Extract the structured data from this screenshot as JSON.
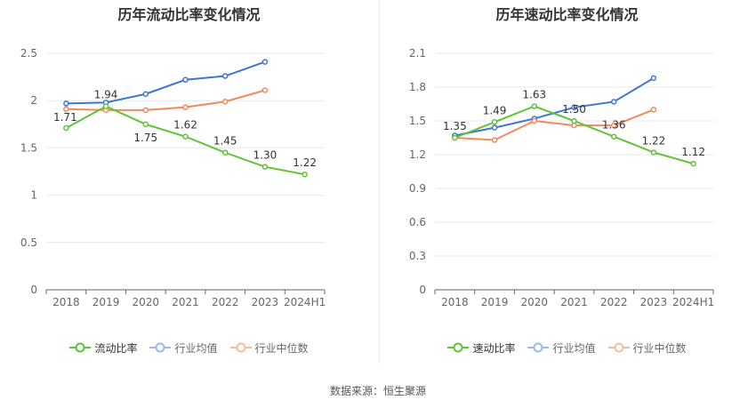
{
  "chart_data": [
    {
      "type": "line",
      "title": "历年流动比率变化情况",
      "categories": [
        "2018",
        "2019",
        "2020",
        "2021",
        "2022",
        "2023",
        "2024H1"
      ],
      "ylim": [
        0,
        2.5
      ],
      "yticks": [
        "0",
        "0.5",
        "1",
        "1.5",
        "2",
        "2.5"
      ],
      "ytick_values": [
        0,
        0.5,
        1,
        1.5,
        2,
        2.5
      ],
      "grid": true,
      "legend": "bottom-center",
      "series": [
        {
          "name": "流动比率",
          "color": "#5dc534",
          "values": [
            1.71,
            1.94,
            1.75,
            1.62,
            1.45,
            1.3,
            1.22
          ],
          "labels": [
            "1.71",
            "1.94",
            "1.75",
            "1.62",
            "1.45",
            "1.30",
            "1.22"
          ]
        },
        {
          "name": "行业均值",
          "color": "#3f75d6",
          "values": [
            1.97,
            1.98,
            2.07,
            2.22,
            2.26,
            2.41,
            null
          ]
        },
        {
          "name": "行业中位数",
          "color": "#f08a5d",
          "values": [
            1.91,
            1.9,
            1.9,
            1.93,
            1.99,
            2.11,
            null
          ]
        }
      ]
    },
    {
      "type": "line",
      "title": "历年速动比率变化情况",
      "categories": [
        "2018",
        "2019",
        "2020",
        "2021",
        "2022",
        "2023",
        "2024H1"
      ],
      "ylim": [
        0,
        2.1
      ],
      "yticks": [
        "0",
        "0.3",
        "0.6",
        "0.9",
        "1.2",
        "1.5",
        "1.8",
        "2.1"
      ],
      "ytick_values": [
        0,
        0.3,
        0.6,
        0.9,
        1.2,
        1.5,
        1.8,
        2.1
      ],
      "grid": true,
      "legend": "bottom-center",
      "series": [
        {
          "name": "速动比率",
          "color": "#5dc534",
          "values": [
            1.35,
            1.49,
            1.63,
            1.5,
            1.36,
            1.22,
            1.12
          ],
          "labels": [
            "1.35",
            "1.49",
            "1.63",
            "1.50",
            "1.36",
            "1.22",
            "1.12"
          ]
        },
        {
          "name": "行业均值",
          "color": "#3f75d6",
          "values": [
            1.37,
            1.44,
            1.52,
            1.62,
            1.67,
            1.88,
            null
          ]
        },
        {
          "name": "行业中位数",
          "color": "#f08a5d",
          "values": [
            1.35,
            1.33,
            1.5,
            1.46,
            1.46,
            1.6,
            null
          ]
        }
      ]
    }
  ],
  "source": "数据来源：恒生聚源"
}
